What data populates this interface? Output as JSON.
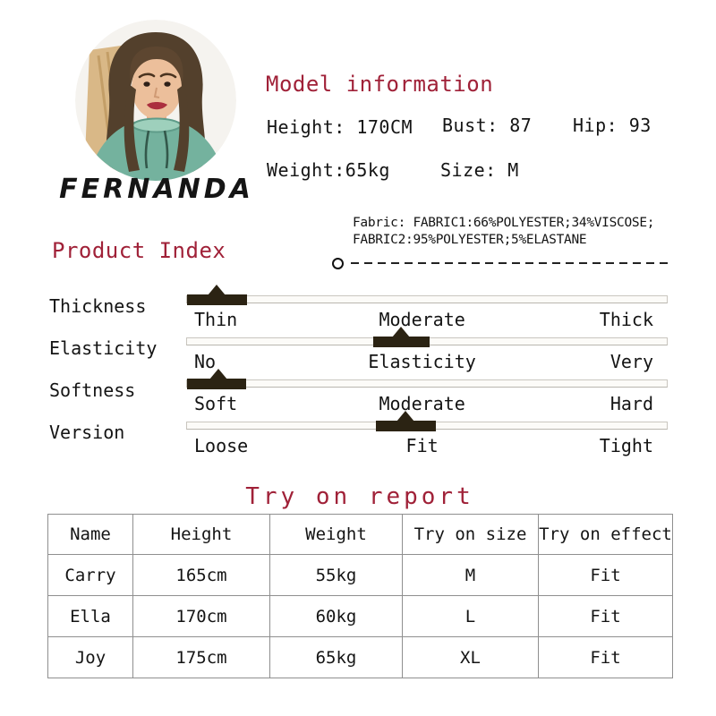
{
  "brand": {
    "name": "FERNANDA"
  },
  "model": {
    "title": "Model information",
    "height": "Height: 170CM",
    "bust": "Bust: 87",
    "hip": "Hip: 93",
    "weight": "Weight:65kg",
    "size": "Size: M"
  },
  "fabric": {
    "line1": "Fabric: FABRIC1:66%POLYESTER;34%VISCOSE;",
    "line2": "FABRIC2:95%POLYESTER;5%ELASTANE"
  },
  "product_index": {
    "title": "Product Index",
    "sliders": [
      {
        "name": "Thickness",
        "left_label": "Thin",
        "mid_label": "Moderate",
        "right_label": "Thick",
        "segment_start_pct": 0,
        "segment_end_pct": 12.5,
        "marker_pct": 6.2,
        "value": "Thin"
      },
      {
        "name": "Elasticity",
        "left_label": "No",
        "mid_label": "Elasticity",
        "right_label": "Very",
        "segment_start_pct": 38.8,
        "segment_end_pct": 50.6,
        "marker_pct": 44.5,
        "value": "Moderate elasticity"
      },
      {
        "name": "Softness",
        "left_label": "Soft",
        "mid_label": "Moderate",
        "right_label": "Hard",
        "segment_start_pct": 0,
        "segment_end_pct": 12.3,
        "marker_pct": 6.5,
        "value": "Soft"
      },
      {
        "name": "Version",
        "left_label": "Loose",
        "mid_label": "Fit",
        "right_label": "Tight",
        "segment_start_pct": 39.4,
        "segment_end_pct": 51.9,
        "marker_pct": 45.6,
        "value": "Fit"
      }
    ]
  },
  "try_on": {
    "title": "Try on report",
    "headers": [
      "Name",
      "Height",
      "Weight",
      "Try on size",
      "Try on effect"
    ],
    "rows": [
      [
        "Carry",
        "165cm",
        "55kg",
        "M",
        "Fit"
      ],
      [
        "Ella",
        "170cm",
        "60kg",
        "L",
        "Fit"
      ],
      [
        "Joy",
        "175cm",
        "65kg",
        "XL",
        "Fit"
      ]
    ]
  },
  "colors": {
    "accent_red": "#a02138",
    "slider_fill_dark": "#2b2313",
    "table_border": "#8f8f8f",
    "hoodie_green": "#74b29e"
  }
}
